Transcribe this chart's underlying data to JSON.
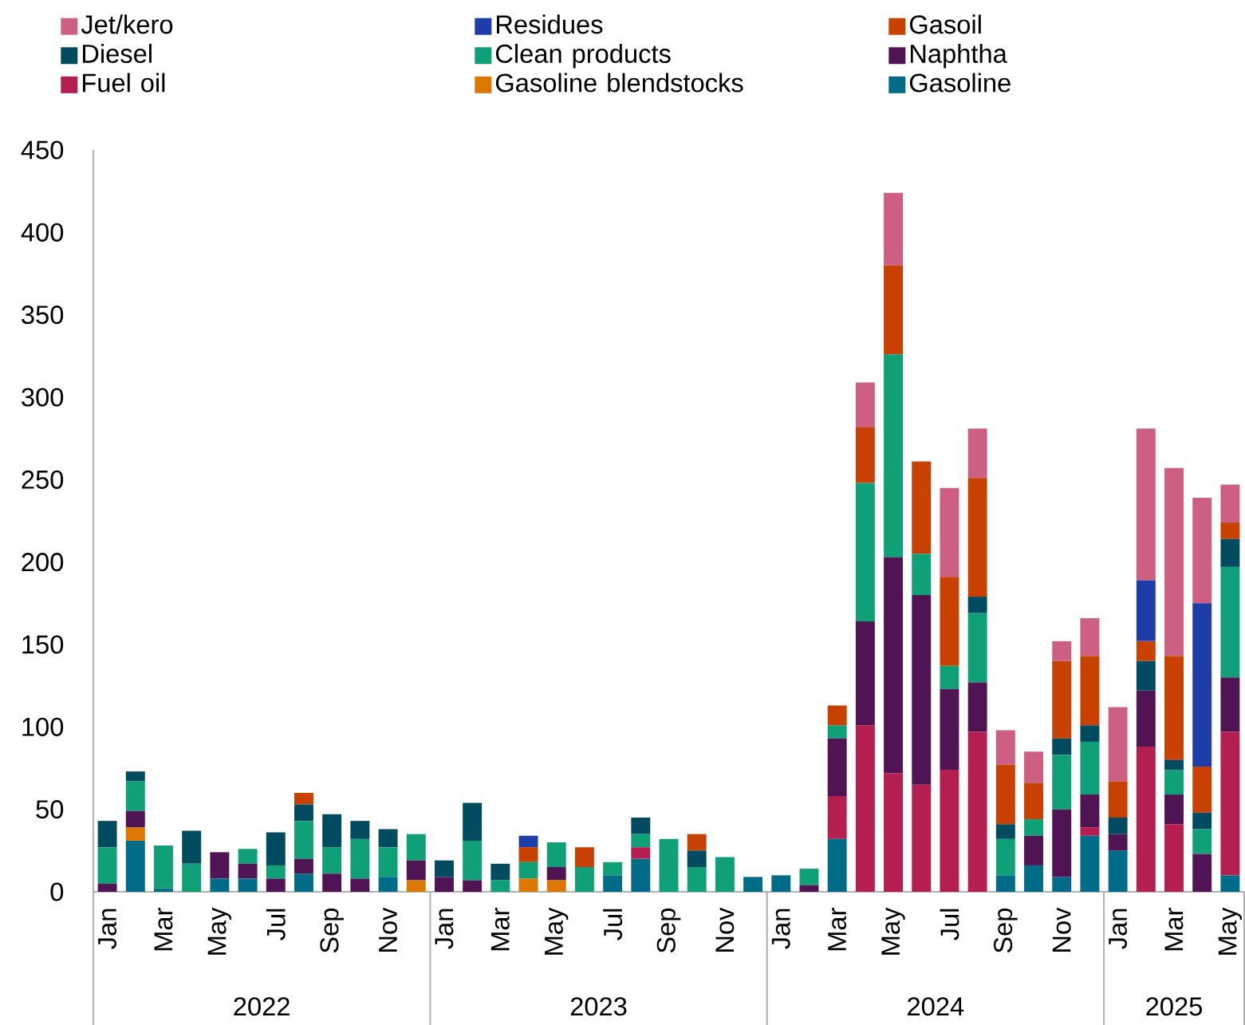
{
  "chart_data": {
    "type": "bar",
    "stacked": true,
    "categories": [
      "Jan",
      null,
      "Mar",
      null,
      "May",
      null,
      "Jul",
      null,
      "Sep",
      null,
      "Nov",
      null,
      "Jan",
      null,
      "Mar",
      null,
      "May",
      null,
      "Jul",
      null,
      "Sep",
      null,
      "Nov",
      null,
      "Jan",
      null,
      "Mar",
      null,
      "May",
      null,
      "Jul",
      null,
      "Sep",
      null,
      "Nov",
      null,
      "Jan",
      null,
      "Mar",
      null,
      "May"
    ],
    "series": [
      {
        "name": "Gasoline",
        "color": "#006c87",
        "values": [
          0,
          31,
          2,
          0,
          8,
          8,
          0,
          11,
          0,
          0,
          9,
          0,
          0,
          0,
          0,
          0,
          0,
          0,
          10,
          20,
          0,
          0,
          0,
          9,
          10,
          0,
          32,
          0,
          0,
          0,
          0,
          0,
          10,
          16,
          9,
          34,
          25,
          0,
          0,
          0,
          10
        ]
      },
      {
        "name": "Gasoline blendstocks",
        "color": "#dc7800",
        "values": [
          0,
          8,
          0,
          0,
          0,
          0,
          0,
          0,
          0,
          0,
          0,
          7,
          0,
          0,
          0,
          8,
          7,
          0,
          0,
          0,
          0,
          0,
          0,
          0,
          0,
          0,
          0,
          0,
          0,
          0,
          0,
          0,
          0,
          0,
          0,
          0,
          0,
          0,
          0,
          0,
          0
        ]
      },
      {
        "name": "Fuel oil",
        "color": "#b41e50",
        "values": [
          0,
          0,
          0,
          0,
          0,
          0,
          0,
          0,
          0,
          0,
          0,
          0,
          0,
          0,
          0,
          0,
          0,
          0,
          0,
          7,
          0,
          0,
          0,
          0,
          0,
          0,
          26,
          101,
          72,
          65,
          74,
          97,
          0,
          0,
          0,
          5,
          0,
          88,
          41,
          0,
          87
        ]
      },
      {
        "name": "Naphtha",
        "color": "#501455",
        "values": [
          5,
          10,
          0,
          0,
          16,
          9,
          8,
          9,
          11,
          8,
          0,
          12,
          9,
          7,
          0,
          0,
          8,
          0,
          0,
          0,
          0,
          0,
          0,
          0,
          0,
          4,
          35,
          63,
          131,
          115,
          49,
          30,
          0,
          18,
          41,
          20,
          10,
          34,
          18,
          23,
          33
        ]
      },
      {
        "name": "Clean products",
        "color": "#0fa078",
        "values": [
          22,
          18,
          26,
          17,
          0,
          9,
          8,
          23,
          16,
          24,
          18,
          16,
          0,
          24,
          7,
          10,
          15,
          15,
          8,
          8,
          32,
          15,
          21,
          0,
          0,
          10,
          8,
          84,
          123,
          25,
          14,
          42,
          22,
          10,
          33,
          32,
          0,
          0,
          15,
          15,
          67
        ]
      },
      {
        "name": "Diesel",
        "color": "#004b5f",
        "values": [
          16,
          6,
          0,
          20,
          0,
          0,
          20,
          10,
          20,
          11,
          11,
          0,
          10,
          23,
          10,
          0,
          0,
          0,
          0,
          10,
          0,
          10,
          0,
          0,
          0,
          0,
          0,
          0,
          0,
          0,
          0,
          10,
          9,
          0,
          10,
          10,
          10,
          18,
          6,
          10,
          17
        ]
      },
      {
        "name": "Gasoil",
        "color": "#c84100",
        "values": [
          0,
          0,
          0,
          0,
          0,
          0,
          0,
          7,
          0,
          0,
          0,
          0,
          0,
          0,
          0,
          9,
          0,
          12,
          0,
          0,
          0,
          10,
          0,
          0,
          0,
          0,
          12,
          34,
          54,
          56,
          54,
          72,
          36,
          22,
          47,
          42,
          22,
          12,
          63,
          28,
          10
        ]
      },
      {
        "name": "Residues",
        "color": "#1e3caa",
        "values": [
          0,
          0,
          0,
          0,
          0,
          0,
          0,
          0,
          0,
          0,
          0,
          0,
          0,
          0,
          0,
          7,
          0,
          0,
          0,
          0,
          0,
          0,
          0,
          0,
          0,
          0,
          0,
          0,
          0,
          0,
          0,
          0,
          0,
          0,
          0,
          0,
          0,
          37,
          0,
          99,
          0
        ]
      },
      {
        "name": "Jet/kero",
        "color": "#cd5f82",
        "values": [
          0,
          0,
          0,
          0,
          0,
          0,
          0,
          0,
          0,
          0,
          0,
          0,
          0,
          0,
          0,
          0,
          0,
          0,
          0,
          0,
          0,
          0,
          0,
          0,
          0,
          0,
          0,
          27,
          44,
          0,
          54,
          30,
          21,
          19,
          12,
          23,
          45,
          92,
          114,
          64,
          23
        ]
      }
    ],
    "ylim": [
      0,
      450
    ],
    "yticks": [
      0,
      50,
      100,
      150,
      200,
      250,
      300,
      350,
      400,
      450
    ],
    "legend": "top",
    "annotations": [
      "2022",
      "2023",
      "2024",
      "2025"
    ]
  }
}
